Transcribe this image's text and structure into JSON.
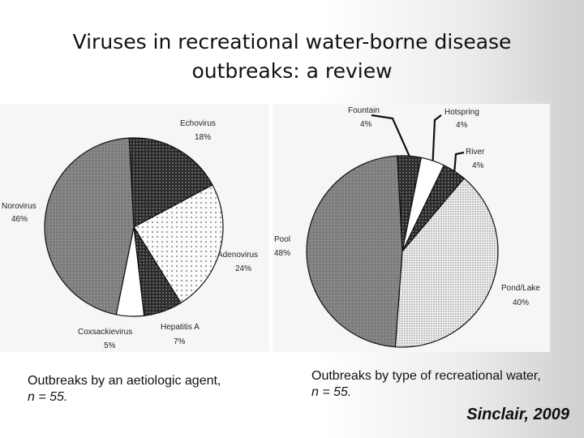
{
  "slide": {
    "title": "Viruses in recreational water-borne disease outbreaks: a review",
    "credit": "Sinclair, 2009"
  },
  "captions": {
    "left_text": "Outbreaks by an aetiologic agent,",
    "left_n": "n = 55.",
    "right_text": "Outbreaks by type of recreational water,",
    "right_n": "n = 55."
  },
  "chart_data": [
    {
      "type": "pie",
      "title": "",
      "slices": [
        {
          "label": "Echovirus",
          "value_label": "18%",
          "value": 18,
          "pattern": "dark-dots"
        },
        {
          "label": "Adenovirus",
          "value_label": "24%",
          "value": 24,
          "pattern": "sparse-dots"
        },
        {
          "label": "Hepatitis A",
          "value_label": "7%",
          "value": 7,
          "pattern": "dark-dots"
        },
        {
          "label": "Coxsackievirus",
          "value_label": "5%",
          "value": 5,
          "pattern": "white"
        },
        {
          "label": "Norovirus",
          "value_label": "46%",
          "value": 46,
          "pattern": "grid-grey"
        }
      ]
    },
    {
      "type": "pie",
      "title": "",
      "slices": [
        {
          "label": "Fountain",
          "value_label": "4%",
          "value": 4,
          "pattern": "dark-dots"
        },
        {
          "label": "Hotspring",
          "value_label": "4%",
          "value": 4,
          "pattern": "white"
        },
        {
          "label": "River",
          "value_label": "4%",
          "value": 4,
          "pattern": "dark-dots"
        },
        {
          "label": "Pond/Lake",
          "value_label": "40%",
          "value": 40,
          "pattern": "dense-dots"
        },
        {
          "label": "Pool",
          "value_label": "48%",
          "value": 48,
          "pattern": "grid-grey"
        }
      ]
    }
  ]
}
